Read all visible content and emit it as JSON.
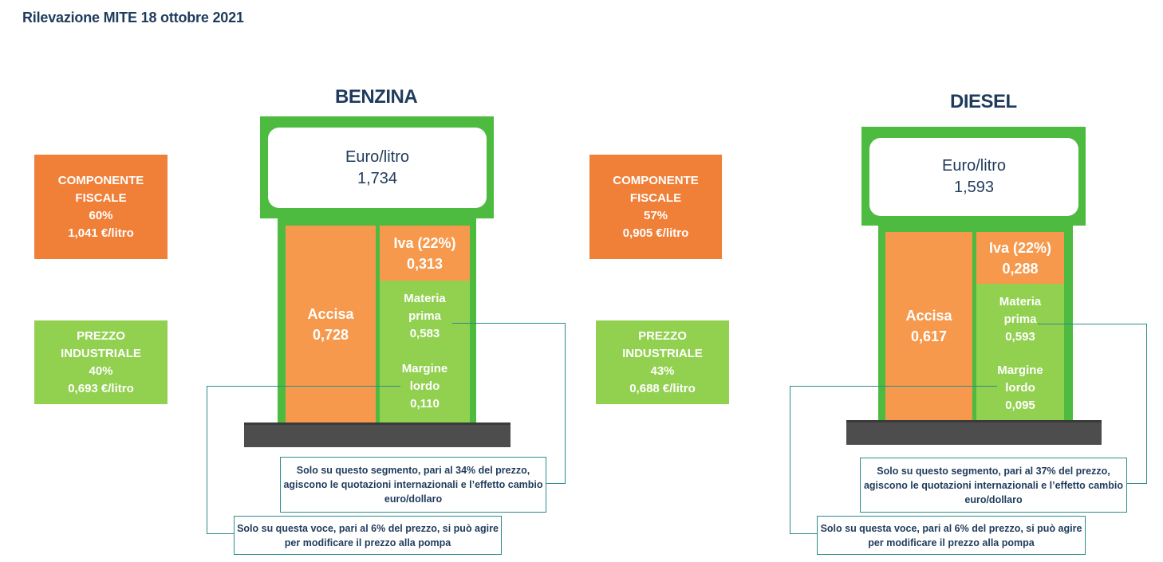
{
  "title": "Rilevazione MITE 18 ottobre 2021",
  "benzina": {
    "name": "BENZINA",
    "unit": "Euro/litro",
    "price": "1,734",
    "fiscale": {
      "l1": "COMPONENTE",
      "l2": "FISCALE",
      "pct": "60%",
      "value": "1,041 €/litro"
    },
    "industriale": {
      "l1": "PREZZO",
      "l2": "INDUSTRIALE",
      "pct": "40%",
      "value": "0,693 €/litro"
    },
    "accisa": {
      "label": "Accisa",
      "value": "0,728"
    },
    "iva": {
      "label": "Iva (22%)",
      "value": "0,313"
    },
    "materia": {
      "l1": "Materia",
      "l2": "prima",
      "value": "0,583"
    },
    "margine": {
      "l1": "Margine",
      "l2": "lordo",
      "value": "0,110"
    },
    "note_materia": {
      "l1": "Solo su questo segmento, pari al 34% del prezzo,",
      "l2": "agiscono le quotazioni internazionali e l’effetto cambio",
      "l3": "euro/dollaro"
    },
    "note_margine": {
      "l1": "Solo su questa voce, pari al 6% del prezzo, si può agire",
      "l2": "per modificare il prezzo alla pompa"
    }
  },
  "diesel": {
    "name": "DIESEL",
    "unit": "Euro/litro",
    "price": "1,593",
    "fiscale": {
      "l1": "COMPONENTE",
      "l2": "FISCALE",
      "pct": "57%",
      "value": "0,905 €/litro"
    },
    "industriale": {
      "l1": "PREZZO",
      "l2": "INDUSTRIALE",
      "pct": "43%",
      "value": "0,688 €/litro"
    },
    "accisa": {
      "label": "Accisa",
      "value": "0,617"
    },
    "iva": {
      "label": "Iva (22%)",
      "value": "0,288"
    },
    "materia": {
      "l1": "Materia",
      "l2": "prima",
      "value": "0,593"
    },
    "margine": {
      "l1": "Margine",
      "l2": "lordo",
      "value": "0,095"
    },
    "note_materia": {
      "l1": "Solo su questo segmento, pari al 37% del prezzo,",
      "l2": "agiscono le quotazioni internazionali e l’effetto cambio",
      "l3": "euro/dollaro"
    },
    "note_margine": {
      "l1": "Solo su questa voce, pari al 6% del prezzo, si può agire",
      "l2": "per modificare il prezzo alla pompa"
    }
  },
  "colors": {
    "orange": "#f07f38",
    "light_orange": "#f6994c",
    "light_green": "#92d050",
    "pump_green": "#4dbb3f",
    "base_gray": "#4d4d4d",
    "connector": "#2e8b8b",
    "text_navy": "#1f3b5c"
  }
}
